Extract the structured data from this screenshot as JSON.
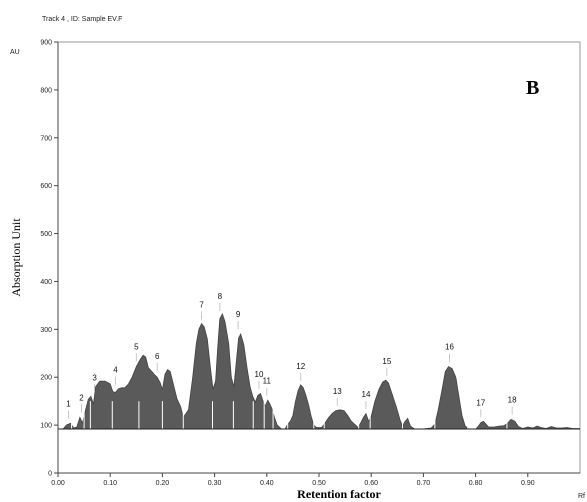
{
  "chart_data": {
    "type": "area",
    "header": "Track 4 , ID: Sample EV.F",
    "panel_label": "B",
    "ylabel": "Absorption Unit",
    "xlabel": "Retention factor",
    "y_unit": "AU",
    "x_unit": "Rf",
    "xlim": [
      0.0,
      1.0
    ],
    "ylim": [
      0,
      900
    ],
    "baseline": 92,
    "x_ticks": [
      "0.00",
      "0.10",
      "0.20",
      "0.30",
      "0.40",
      "0.50",
      "0.60",
      "0.70",
      "0.80",
      "0.90"
    ],
    "y_ticks": [
      "0",
      "100",
      "200",
      "300",
      "400",
      "500",
      "600",
      "700",
      "800",
      "900"
    ],
    "grid": false,
    "fill_color": "#5a5a5a",
    "line_color": "#444444",
    "peaks": [
      {
        "label": "1",
        "rf": 0.02,
        "height": 105
      },
      {
        "label": "2",
        "rf": 0.045,
        "height": 118
      },
      {
        "label": "3",
        "rf": 0.07,
        "height": 160
      },
      {
        "label": "4",
        "rf": 0.11,
        "height": 176
      },
      {
        "label": "5",
        "rf": 0.15,
        "height": 225
      },
      {
        "label": "6",
        "rf": 0.19,
        "height": 205
      },
      {
        "label": "7",
        "rf": 0.275,
        "height": 312
      },
      {
        "label": "8",
        "rf": 0.31,
        "height": 330
      },
      {
        "label": "9",
        "rf": 0.345,
        "height": 292
      },
      {
        "label": "10",
        "rf": 0.385,
        "height": 167
      },
      {
        "label": "11",
        "rf": 0.4,
        "height": 153
      },
      {
        "label": "12",
        "rf": 0.465,
        "height": 184
      },
      {
        "label": "13",
        "rf": 0.535,
        "height": 132
      },
      {
        "label": "14",
        "rf": 0.59,
        "height": 125
      },
      {
        "label": "15",
        "rf": 0.63,
        "height": 194
      },
      {
        "label": "16",
        "rf": 0.75,
        "height": 224
      },
      {
        "label": "17",
        "rf": 0.81,
        "height": 108
      },
      {
        "label": "18",
        "rf": 0.87,
        "height": 114
      }
    ],
    "trace": [
      [
        0.0,
        92
      ],
      [
        0.01,
        92
      ],
      [
        0.016,
        100
      ],
      [
        0.024,
        104
      ],
      [
        0.03,
        94
      ],
      [
        0.036,
        96
      ],
      [
        0.042,
        116
      ],
      [
        0.047,
        104
      ],
      [
        0.052,
        128
      ],
      [
        0.058,
        154
      ],
      [
        0.063,
        160
      ],
      [
        0.068,
        144
      ],
      [
        0.072,
        180
      ],
      [
        0.08,
        192
      ],
      [
        0.09,
        192
      ],
      [
        0.1,
        186
      ],
      [
        0.105,
        170
      ],
      [
        0.11,
        168
      ],
      [
        0.116,
        176
      ],
      [
        0.122,
        178
      ],
      [
        0.128,
        178
      ],
      [
        0.135,
        186
      ],
      [
        0.142,
        200
      ],
      [
        0.15,
        222
      ],
      [
        0.158,
        238
      ],
      [
        0.163,
        246
      ],
      [
        0.168,
        242
      ],
      [
        0.173,
        220
      ],
      [
        0.178,
        214
      ],
      [
        0.185,
        205
      ],
      [
        0.19,
        200
      ],
      [
        0.196,
        188
      ],
      [
        0.2,
        174
      ],
      [
        0.205,
        206
      ],
      [
        0.21,
        216
      ],
      [
        0.215,
        212
      ],
      [
        0.22,
        190
      ],
      [
        0.228,
        155
      ],
      [
        0.235,
        138
      ],
      [
        0.24,
        116
      ],
      [
        0.25,
        132
      ],
      [
        0.258,
        200
      ],
      [
        0.265,
        270
      ],
      [
        0.27,
        300
      ],
      [
        0.275,
        312
      ],
      [
        0.28,
        305
      ],
      [
        0.286,
        280
      ],
      [
        0.292,
        220
      ],
      [
        0.297,
        175
      ],
      [
        0.302,
        192
      ],
      [
        0.306,
        262
      ],
      [
        0.31,
        322
      ],
      [
        0.315,
        332
      ],
      [
        0.32,
        316
      ],
      [
        0.327,
        270
      ],
      [
        0.332,
        200
      ],
      [
        0.337,
        180
      ],
      [
        0.342,
        236
      ],
      [
        0.346,
        282
      ],
      [
        0.35,
        290
      ],
      [
        0.356,
        268
      ],
      [
        0.362,
        220
      ],
      [
        0.368,
        180
      ],
      [
        0.373,
        160
      ],
      [
        0.378,
        148
      ],
      [
        0.383,
        162
      ],
      [
        0.388,
        166
      ],
      [
        0.393,
        150
      ],
      [
        0.397,
        140
      ],
      [
        0.402,
        152
      ],
      [
        0.406,
        144
      ],
      [
        0.41,
        134
      ],
      [
        0.415,
        115
      ],
      [
        0.42,
        100
      ],
      [
        0.428,
        92
      ],
      [
        0.435,
        92
      ],
      [
        0.44,
        102
      ],
      [
        0.445,
        108
      ],
      [
        0.45,
        120
      ],
      [
        0.455,
        150
      ],
      [
        0.46,
        172
      ],
      [
        0.465,
        184
      ],
      [
        0.47,
        178
      ],
      [
        0.475,
        162
      ],
      [
        0.48,
        142
      ],
      [
        0.485,
        118
      ],
      [
        0.49,
        100
      ],
      [
        0.495,
        95
      ],
      [
        0.505,
        95
      ],
      [
        0.51,
        102
      ],
      [
        0.518,
        115
      ],
      [
        0.525,
        124
      ],
      [
        0.532,
        130
      ],
      [
        0.54,
        132
      ],
      [
        0.548,
        130
      ],
      [
        0.555,
        120
      ],
      [
        0.562,
        108
      ],
      [
        0.57,
        100
      ],
      [
        0.575,
        95
      ],
      [
        0.58,
        105
      ],
      [
        0.585,
        116
      ],
      [
        0.59,
        124
      ],
      [
        0.595,
        108
      ],
      [
        0.6,
        118
      ],
      [
        0.607,
        150
      ],
      [
        0.615,
        175
      ],
      [
        0.622,
        190
      ],
      [
        0.628,
        194
      ],
      [
        0.633,
        188
      ],
      [
        0.64,
        165
      ],
      [
        0.648,
        138
      ],
      [
        0.655,
        112
      ],
      [
        0.66,
        98
      ],
      [
        0.665,
        108
      ],
      [
        0.67,
        114
      ],
      [
        0.675,
        98
      ],
      [
        0.683,
        92
      ],
      [
        0.7,
        92
      ],
      [
        0.715,
        94
      ],
      [
        0.722,
        102
      ],
      [
        0.728,
        130
      ],
      [
        0.735,
        170
      ],
      [
        0.742,
        212
      ],
      [
        0.748,
        222
      ],
      [
        0.755,
        218
      ],
      [
        0.762,
        200
      ],
      [
        0.768,
        160
      ],
      [
        0.774,
        120
      ],
      [
        0.78,
        98
      ],
      [
        0.787,
        92
      ],
      [
        0.8,
        92
      ],
      [
        0.805,
        97
      ],
      [
        0.81,
        105
      ],
      [
        0.815,
        108
      ],
      [
        0.82,
        102
      ],
      [
        0.825,
        96
      ],
      [
        0.835,
        96
      ],
      [
        0.845,
        98
      ],
      [
        0.855,
        99
      ],
      [
        0.862,
        105
      ],
      [
        0.868,
        112
      ],
      [
        0.875,
        108
      ],
      [
        0.882,
        97
      ],
      [
        0.89,
        93
      ],
      [
        0.9,
        96
      ],
      [
        0.91,
        94
      ],
      [
        0.918,
        98
      ],
      [
        0.925,
        95
      ],
      [
        0.935,
        93
      ],
      [
        0.945,
        97
      ],
      [
        0.955,
        94
      ],
      [
        0.965,
        94
      ],
      [
        0.975,
        95
      ],
      [
        0.985,
        93
      ],
      [
        1.0,
        93
      ]
    ]
  }
}
